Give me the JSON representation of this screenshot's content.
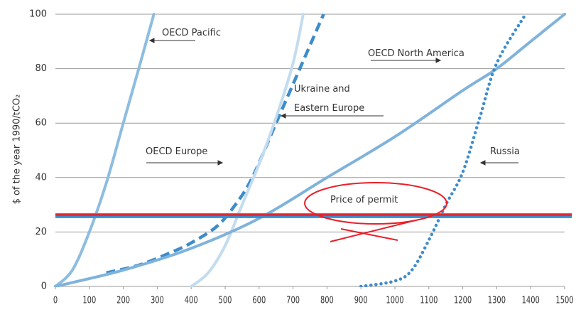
{
  "chart_data": {
    "type": "line",
    "y_label": "$ of the year 1990/tCO₂",
    "xlim": [
      0,
      1500
    ],
    "xticks": [
      0,
      100,
      200,
      300,
      400,
      500,
      600,
      700,
      800,
      900,
      1000,
      1100,
      1200,
      1300,
      1400,
      1500
    ],
    "ylim": [
      0,
      100
    ],
    "yticks": [
      0,
      20,
      40,
      60,
      80,
      100
    ],
    "grid": true,
    "series": [
      {
        "name": "OECD Pacific",
        "color": "#8dbde0",
        "style": "solid",
        "x": [
          0,
          50,
          100,
          150,
          200,
          250,
          290
        ],
        "values": [
          0,
          6,
          20,
          38,
          60,
          82,
          100
        ]
      },
      {
        "name": "OECD Europe",
        "color": "#3d8ccb",
        "style": "dashed",
        "x": [
          150,
          250,
          350,
          400,
          475,
          530,
          580,
          650,
          720,
          790
        ],
        "values": [
          5,
          8,
          13,
          16,
          22,
          30,
          40,
          60,
          80,
          100
        ]
      },
      {
        "name": "Ukraine and Eastern Europe",
        "color": "#c3dcef",
        "style": "solid",
        "x": [
          400,
          450,
          500,
          550,
          600,
          650,
          700,
          730
        ],
        "values": [
          0,
          5,
          15,
          30,
          45,
          62,
          82,
          100
        ]
      },
      {
        "name": "OECD North America",
        "color": "#7fb3dc",
        "style": "solid",
        "x": [
          0,
          200,
          400,
          600,
          800,
          1000,
          1200,
          1300,
          1400,
          1500
        ],
        "values": [
          0,
          6,
          14,
          25,
          40,
          55,
          72,
          80,
          90,
          100
        ]
      },
      {
        "name": "Russia",
        "color": "#3d8ccb",
        "style": "dotted",
        "x": [
          900,
          1000,
          1050,
          1100,
          1150,
          1200,
          1250,
          1300,
          1385
        ],
        "values": [
          0,
          2,
          6,
          17,
          30,
          42,
          62,
          82,
          100
        ]
      }
    ],
    "permit": {
      "label": "Price of permit",
      "value": 26,
      "color": "#3d8ccb",
      "mark_color": "#e8202a"
    }
  }
}
